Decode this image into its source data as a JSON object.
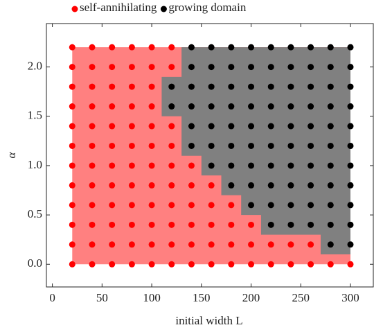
{
  "chart_data": {
    "type": "scatter",
    "xlabel": "initial width L",
    "ylabel": "α",
    "xlim": [
      -6,
      323
    ],
    "ylim": [
      -0.23,
      2.44
    ],
    "xticks": [
      0,
      50,
      100,
      150,
      200,
      250,
      300
    ],
    "yticks": [
      {
        "value": 0,
        "label": "0.0"
      },
      {
        "value": 0.5,
        "label": "0.5"
      },
      {
        "value": 1,
        "label": "1.0"
      },
      {
        "value": 1.5,
        "label": "1.5"
      },
      {
        "value": 2,
        "label": "2.0"
      }
    ],
    "legend": "top",
    "regions": [
      {
        "color": "#ff8080",
        "x": [
          20,
          300,
          300,
          20
        ],
        "y": [
          0,
          0,
          2.2,
          2.2
        ]
      },
      {
        "color": "#808080",
        "x": [
          130,
          300,
          300,
          270,
          270,
          210,
          210,
          190,
          190,
          170,
          170,
          150,
          150,
          130,
          130,
          110,
          110,
          130
        ],
        "y": [
          2.2,
          2.2,
          0.1,
          0.1,
          0.3,
          0.3,
          0.5,
          0.5,
          0.7,
          0.7,
          0.9,
          0.9,
          1.1,
          1.1,
          1.5,
          1.5,
          1.9,
          1.9
        ]
      }
    ],
    "series": [
      {
        "name": "self-annihilating",
        "color": "#ff0000",
        "x": [
          20,
          40,
          60,
          80,
          100,
          120,
          140,
          160,
          180,
          200,
          220,
          240,
          260,
          280,
          300,
          20,
          40,
          60,
          80,
          100,
          120,
          140,
          160,
          180,
          200,
          220,
          240,
          260,
          20,
          40,
          60,
          80,
          100,
          120,
          140,
          160,
          180,
          200,
          20,
          40,
          60,
          80,
          100,
          120,
          140,
          160,
          180,
          20,
          40,
          60,
          80,
          100,
          120,
          140,
          160,
          20,
          40,
          60,
          80,
          100,
          120,
          140,
          20,
          40,
          60,
          80,
          100,
          120,
          20,
          40,
          60,
          80,
          100,
          120,
          20,
          40,
          60,
          80,
          100,
          20,
          40,
          60,
          80,
          100,
          20,
          40,
          60,
          80,
          100,
          120,
          20,
          40,
          60,
          80,
          100,
          120
        ],
        "values": [
          0,
          0,
          0,
          0,
          0,
          0,
          0,
          0,
          0,
          0,
          0,
          0,
          0,
          0,
          0,
          0.2,
          0.2,
          0.2,
          0.2,
          0.2,
          0.2,
          0.2,
          0.2,
          0.2,
          0.2,
          0.2,
          0.2,
          0.2,
          0.4,
          0.4,
          0.4,
          0.4,
          0.4,
          0.4,
          0.4,
          0.4,
          0.4,
          0.4,
          0.6,
          0.6,
          0.6,
          0.6,
          0.6,
          0.6,
          0.6,
          0.6,
          0.6,
          0.8,
          0.8,
          0.8,
          0.8,
          0.8,
          0.8,
          0.8,
          0.8,
          1,
          1,
          1,
          1,
          1,
          1,
          1,
          1.2,
          1.2,
          1.2,
          1.2,
          1.2,
          1.2,
          1.4,
          1.4,
          1.4,
          1.4,
          1.4,
          1.4,
          1.6,
          1.6,
          1.6,
          1.6,
          1.6,
          1.8,
          1.8,
          1.8,
          1.8,
          1.8,
          2,
          2,
          2,
          2,
          2,
          2,
          2.2,
          2.2,
          2.2,
          2.2,
          2.2,
          2.2
        ]
      },
      {
        "name": "growing domain",
        "color": "#000000",
        "x": [
          280,
          300,
          220,
          240,
          260,
          280,
          300,
          200,
          220,
          240,
          260,
          280,
          300,
          180,
          200,
          220,
          240,
          260,
          280,
          300,
          160,
          180,
          200,
          220,
          240,
          260,
          280,
          300,
          140,
          160,
          180,
          200,
          220,
          240,
          260,
          280,
          300,
          140,
          160,
          180,
          200,
          220,
          240,
          260,
          280,
          300,
          120,
          140,
          160,
          180,
          200,
          220,
          240,
          260,
          280,
          300,
          120,
          140,
          160,
          180,
          200,
          220,
          240,
          260,
          280,
          300,
          140,
          160,
          180,
          200,
          220,
          240,
          260,
          280,
          300,
          140,
          160,
          180,
          200,
          220,
          240,
          260,
          280,
          300
        ],
        "values": [
          0.2,
          0.2,
          0.4,
          0.4,
          0.4,
          0.4,
          0.4,
          0.6,
          0.6,
          0.6,
          0.6,
          0.6,
          0.6,
          0.8,
          0.8,
          0.8,
          0.8,
          0.8,
          0.8,
          0.8,
          1,
          1,
          1,
          1,
          1,
          1,
          1,
          1,
          1.2,
          1.2,
          1.2,
          1.2,
          1.2,
          1.2,
          1.2,
          1.2,
          1.2,
          1.4,
          1.4,
          1.4,
          1.4,
          1.4,
          1.4,
          1.4,
          1.4,
          1.4,
          1.6,
          1.6,
          1.6,
          1.6,
          1.6,
          1.6,
          1.6,
          1.6,
          1.6,
          1.6,
          1.8,
          1.8,
          1.8,
          1.8,
          1.8,
          1.8,
          1.8,
          1.8,
          1.8,
          1.8,
          2,
          2,
          2,
          2,
          2,
          2,
          2,
          2,
          2,
          2.2,
          2.2,
          2.2,
          2.2,
          2.2,
          2.2,
          2.2,
          2.2,
          2.2
        ]
      }
    ]
  }
}
